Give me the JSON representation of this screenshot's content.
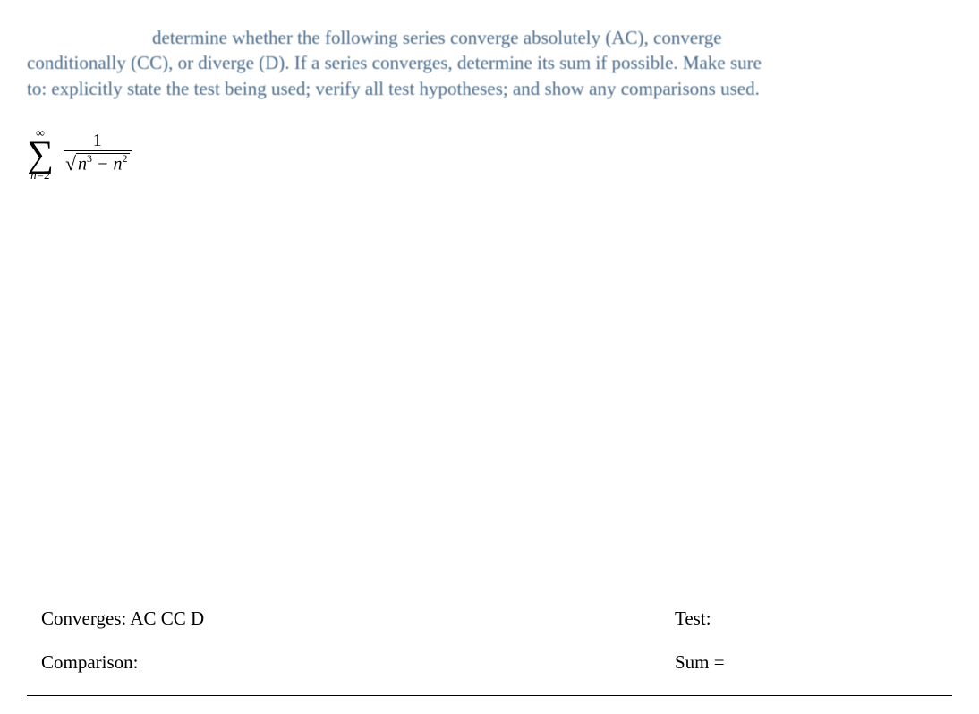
{
  "instructions": {
    "line1": "determine whether the following series converge absolutely (AC), converge",
    "line2": "conditionally (CC), or diverge (D). If a series converges, determine its sum if possible. Make sure",
    "line3": "to: explicitly state the test being used; verify all test hypotheses; and show any comparisons used."
  },
  "formula": {
    "sigma_top": "∞",
    "sigma_bottom": "n=2",
    "numerator": "1",
    "sqrt_n_var": "n",
    "sqrt_exp1": "3",
    "minus": " − ",
    "sqrt_n_var2": "n",
    "sqrt_exp2": "2"
  },
  "bottom": {
    "converges_label": "Converges:  AC CC D",
    "test_label": "Test:",
    "comparison_label": "Comparison:",
    "sum_label": "Sum ="
  },
  "colors": {
    "instruction_text": "#4a6b8a",
    "body_text": "#000000",
    "background": "#ffffff"
  },
  "typography": {
    "font_family": "Times New Roman",
    "instruction_fontsize": 21,
    "body_fontsize": 21,
    "sigma_fontsize": 42
  }
}
